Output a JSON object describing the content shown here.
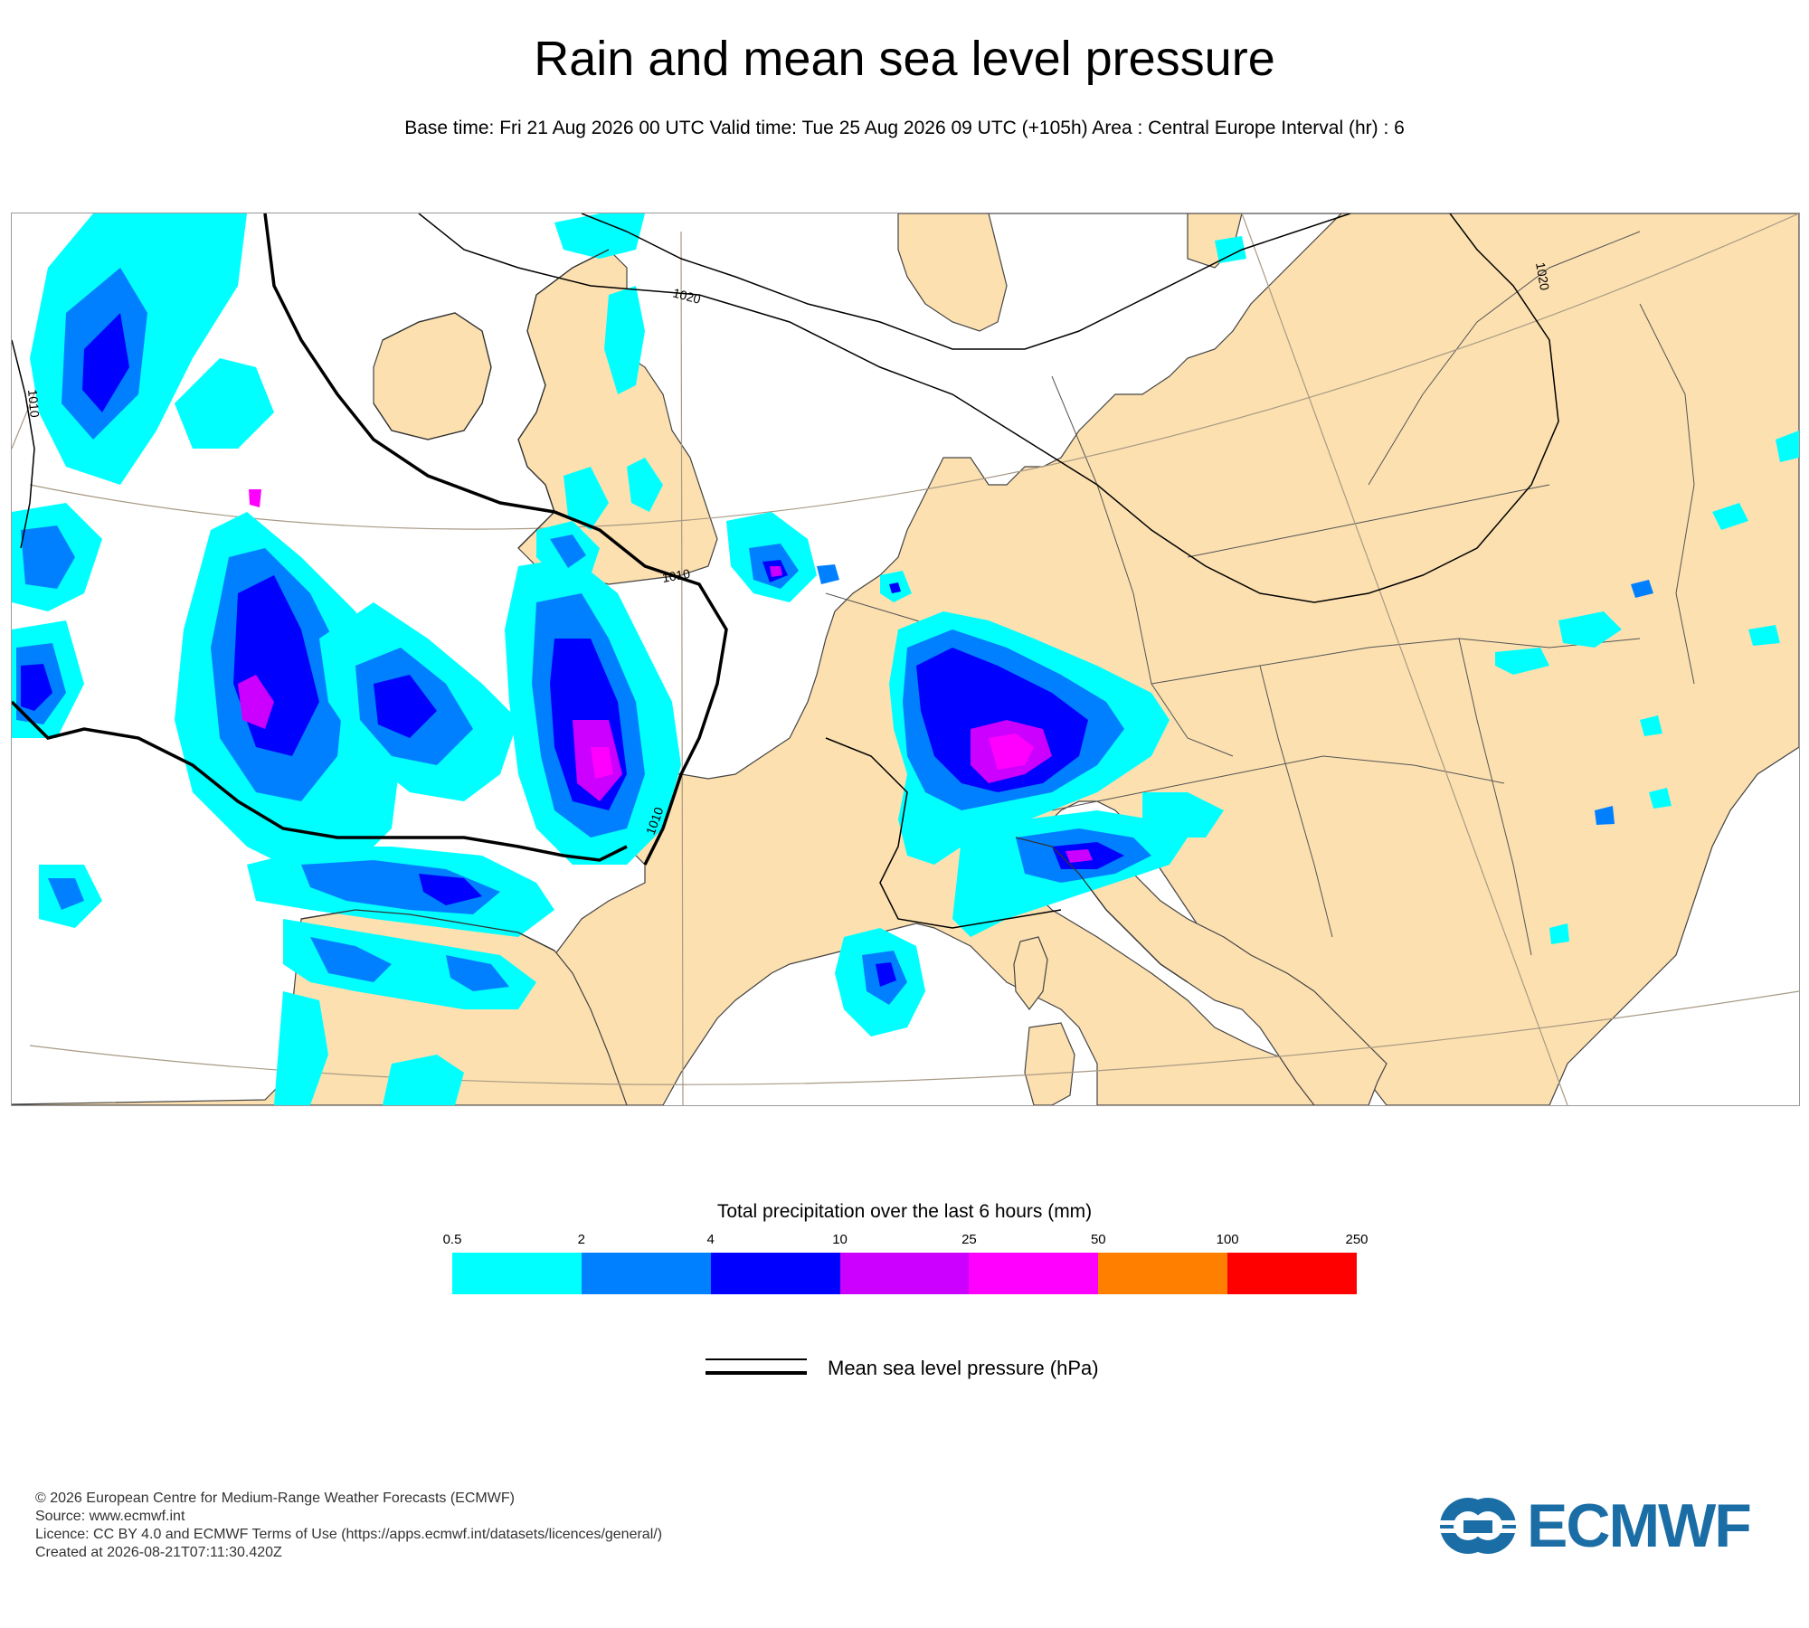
{
  "title": "Rain and mean sea level pressure",
  "subtitle": "Base time: Fri 21 Aug 2026 00 UTC Valid time: Tue 25 Aug 2026 09 UTC (+105h) Area : Central Europe Interval (hr) : 6",
  "map": {
    "isobar_labels": [
      "1020",
      "1020",
      "1010",
      "1010",
      "1010"
    ],
    "colors": {
      "land": "#fce0b0",
      "sea": "#ffffff"
    }
  },
  "legend": {
    "title": "Total precipitation over the last 6 hours (mm)",
    "ticks": [
      "0.5",
      "2",
      "4",
      "10",
      "25",
      "50",
      "100",
      "250"
    ],
    "colors": [
      "#00ffff",
      "#0080ff",
      "#0000ff",
      "#cc00ff",
      "#ff00ff",
      "#ff8000",
      "#ff0000"
    ],
    "mslp_label": "Mean sea level pressure (hPa)"
  },
  "footer": {
    "line1": "© 2026 European Centre for Medium-Range Weather Forecasts (ECMWF)",
    "line2": "Source: www.ecmwf.int",
    "line3": "Licence: CC BY 4.0 and ECMWF Terms of Use (https://apps.ecmwf.int/datasets/licences/general/)",
    "line4": "Created at 2026-08-21T07:11:30.420Z"
  },
  "logo": {
    "text": "ECMWF",
    "color": "#1b6ea5"
  }
}
